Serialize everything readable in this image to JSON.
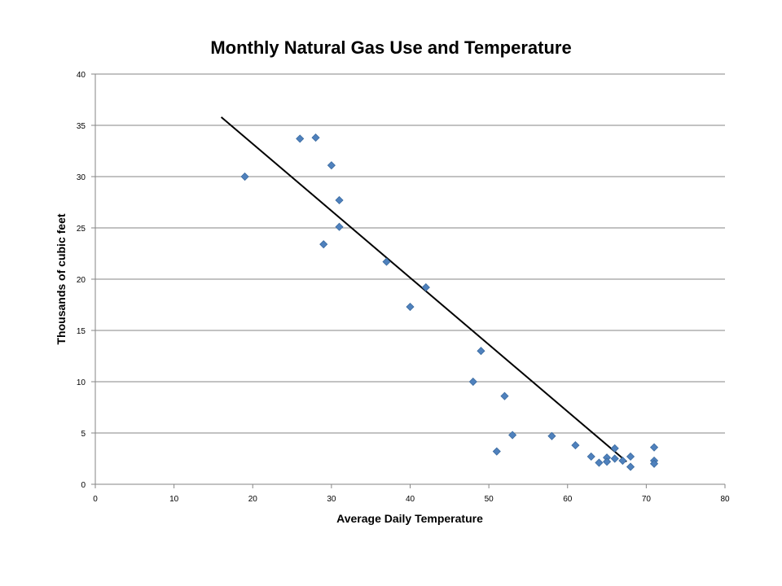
{
  "chart_data": {
    "type": "scatter",
    "title": "Monthly Natural Gas Use and Temperature",
    "xlabel": "Average Daily Temperature",
    "ylabel": "Thousands of cubic feet",
    "xlim": [
      0,
      80
    ],
    "ylim": [
      0,
      40
    ],
    "xticks": [
      0,
      10,
      20,
      30,
      40,
      50,
      60,
      70,
      80
    ],
    "yticks": [
      0,
      5,
      10,
      15,
      20,
      25,
      30,
      35,
      40
    ],
    "grid": "horizontal",
    "legend": "none",
    "marker": "diamond",
    "marker_color": "#4F81BD",
    "trendline": {
      "type": "linear",
      "color": "#000000",
      "x": [
        16,
        67.5
      ],
      "y": [
        35.8,
        2.2
      ]
    },
    "points": [
      {
        "x": 19,
        "y": 30.0
      },
      {
        "x": 26,
        "y": 33.7
      },
      {
        "x": 28,
        "y": 33.8
      },
      {
        "x": 29,
        "y": 23.4
      },
      {
        "x": 30,
        "y": 31.1
      },
      {
        "x": 31,
        "y": 27.7
      },
      {
        "x": 31,
        "y": 25.1
      },
      {
        "x": 37,
        "y": 21.7
      },
      {
        "x": 40,
        "y": 17.3
      },
      {
        "x": 42,
        "y": 19.2
      },
      {
        "x": 48,
        "y": 10.0
      },
      {
        "x": 49,
        "y": 13.0
      },
      {
        "x": 51,
        "y": 3.2
      },
      {
        "x": 52,
        "y": 8.6
      },
      {
        "x": 53,
        "y": 4.8
      },
      {
        "x": 58,
        "y": 4.7
      },
      {
        "x": 61,
        "y": 3.8
      },
      {
        "x": 63,
        "y": 2.7
      },
      {
        "x": 64,
        "y": 2.1
      },
      {
        "x": 65,
        "y": 2.6
      },
      {
        "x": 65,
        "y": 2.2
      },
      {
        "x": 66,
        "y": 3.5
      },
      {
        "x": 66,
        "y": 2.5
      },
      {
        "x": 67,
        "y": 2.3
      },
      {
        "x": 68,
        "y": 2.7
      },
      {
        "x": 68,
        "y": 1.7
      },
      {
        "x": 71,
        "y": 3.6
      },
      {
        "x": 71,
        "y": 2.3
      },
      {
        "x": 71,
        "y": 2.0
      }
    ]
  }
}
